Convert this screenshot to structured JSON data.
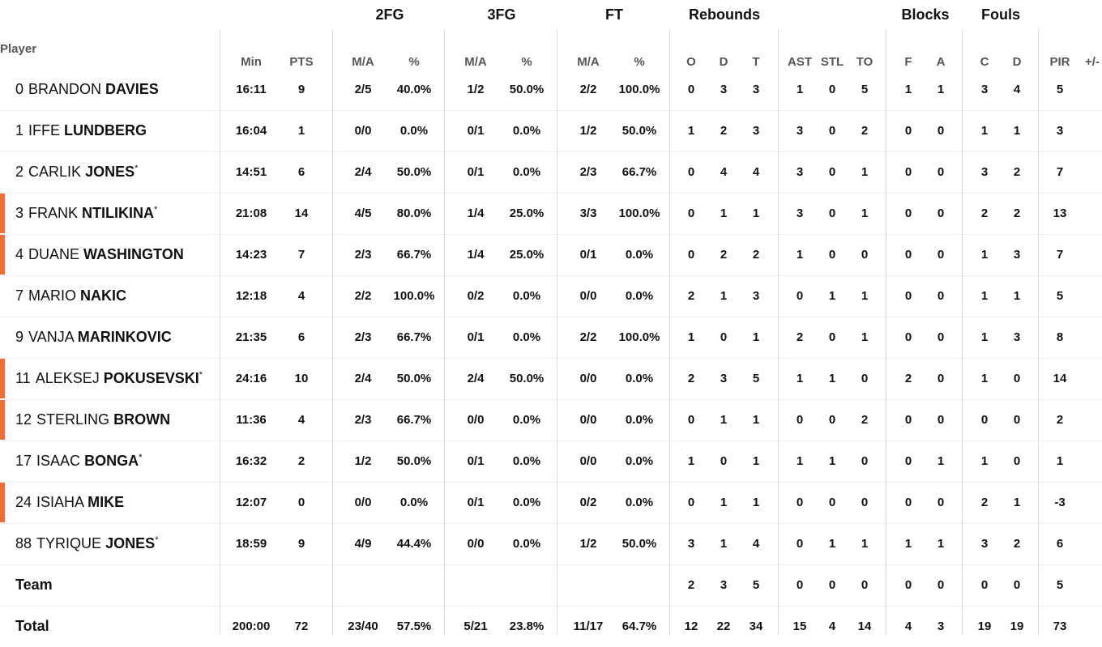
{
  "group_headers": [
    "2FG",
    "3FG",
    "FT",
    "Rebounds",
    "Blocks",
    "Fouls"
  ],
  "player_label": "Player",
  "columns": [
    "Min",
    "PTS",
    "M/A",
    "%",
    "M/A",
    "%",
    "M/A",
    "%",
    "O",
    "D",
    "T",
    "AST",
    "STL",
    "TO",
    "F",
    "A",
    "C",
    "D",
    "PIR",
    "+/-"
  ],
  "rows": [
    {
      "num": "0",
      "first": "BRANDON",
      "last": "DAVIES",
      "star": "",
      "mark": false,
      "stats": [
        "16:11",
        "9",
        "2/5",
        "40.0%",
        "1/2",
        "50.0%",
        "2/2",
        "100.0%",
        "0",
        "3",
        "3",
        "1",
        "0",
        "5",
        "1",
        "1",
        "3",
        "4",
        "5",
        ""
      ]
    },
    {
      "num": "1",
      "first": "IFFE",
      "last": "LUNDBERG",
      "star": "",
      "mark": false,
      "stats": [
        "16:04",
        "1",
        "0/0",
        "0.0%",
        "0/1",
        "0.0%",
        "1/2",
        "50.0%",
        "1",
        "2",
        "3",
        "3",
        "0",
        "2",
        "0",
        "0",
        "1",
        "1",
        "3",
        ""
      ]
    },
    {
      "num": "2",
      "first": "CARLIK",
      "last": "JONES",
      "star": "*",
      "mark": false,
      "stats": [
        "14:51",
        "6",
        "2/4",
        "50.0%",
        "0/1",
        "0.0%",
        "2/3",
        "66.7%",
        "0",
        "4",
        "4",
        "3",
        "0",
        "1",
        "0",
        "0",
        "3",
        "2",
        "7",
        ""
      ]
    },
    {
      "num": "3",
      "first": "FRANK",
      "last": "NTILIKINA",
      "star": "*",
      "mark": true,
      "stats": [
        "21:08",
        "14",
        "4/5",
        "80.0%",
        "1/4",
        "25.0%",
        "3/3",
        "100.0%",
        "0",
        "1",
        "1",
        "3",
        "0",
        "1",
        "0",
        "0",
        "2",
        "2",
        "13",
        ""
      ]
    },
    {
      "num": "4",
      "first": "DUANE",
      "last": "WASHINGTON",
      "star": "",
      "mark": true,
      "stats": [
        "14:23",
        "7",
        "2/3",
        "66.7%",
        "1/4",
        "25.0%",
        "0/1",
        "0.0%",
        "0",
        "2",
        "2",
        "1",
        "0",
        "0",
        "0",
        "0",
        "1",
        "3",
        "7",
        ""
      ]
    },
    {
      "num": "7",
      "first": "MARIO",
      "last": "NAKIC",
      "star": "",
      "mark": false,
      "stats": [
        "12:18",
        "4",
        "2/2",
        "100.0%",
        "0/2",
        "0.0%",
        "0/0",
        "0.0%",
        "2",
        "1",
        "3",
        "0",
        "1",
        "1",
        "0",
        "0",
        "1",
        "1",
        "5",
        ""
      ]
    },
    {
      "num": "9",
      "first": "VANJA",
      "last": "MARINKOVIC",
      "star": "",
      "mark": false,
      "stats": [
        "21:35",
        "6",
        "2/3",
        "66.7%",
        "0/1",
        "0.0%",
        "2/2",
        "100.0%",
        "1",
        "0",
        "1",
        "2",
        "0",
        "1",
        "0",
        "0",
        "1",
        "3",
        "8",
        ""
      ]
    },
    {
      "num": "11",
      "first": "ALEKSEJ",
      "last": "POKUSEVSKI",
      "star": "*",
      "mark": true,
      "stats": [
        "24:16",
        "10",
        "2/4",
        "50.0%",
        "2/4",
        "50.0%",
        "0/0",
        "0.0%",
        "2",
        "3",
        "5",
        "1",
        "1",
        "0",
        "2",
        "0",
        "1",
        "0",
        "14",
        ""
      ]
    },
    {
      "num": "12",
      "first": "STERLING",
      "last": "BROWN",
      "star": "",
      "mark": true,
      "stats": [
        "11:36",
        "4",
        "2/3",
        "66.7%",
        "0/0",
        "0.0%",
        "0/0",
        "0.0%",
        "0",
        "1",
        "1",
        "0",
        "0",
        "2",
        "0",
        "0",
        "0",
        "0",
        "2",
        ""
      ]
    },
    {
      "num": "17",
      "first": "ISAAC",
      "last": "BONGA",
      "star": "*",
      "mark": false,
      "stats": [
        "16:32",
        "2",
        "1/2",
        "50.0%",
        "0/1",
        "0.0%",
        "0/0",
        "0.0%",
        "1",
        "0",
        "1",
        "1",
        "1",
        "0",
        "0",
        "1",
        "1",
        "0",
        "1",
        ""
      ]
    },
    {
      "num": "24",
      "first": "ISIAHA",
      "last": "MIKE",
      "star": "",
      "mark": true,
      "stats": [
        "12:07",
        "0",
        "0/0",
        "0.0%",
        "0/1",
        "0.0%",
        "0/2",
        "0.0%",
        "0",
        "1",
        "1",
        "0",
        "0",
        "0",
        "0",
        "0",
        "2",
        "1",
        "-3",
        ""
      ]
    },
    {
      "num": "88",
      "first": "TYRIQUE",
      "last": "JONES",
      "star": "*",
      "mark": false,
      "stats": [
        "18:59",
        "9",
        "4/9",
        "44.4%",
        "0/0",
        "0.0%",
        "1/2",
        "50.0%",
        "3",
        "1",
        "4",
        "0",
        "1",
        "1",
        "1",
        "1",
        "3",
        "2",
        "6",
        ""
      ]
    }
  ],
  "team_row": {
    "label": "Team",
    "stats": [
      "",
      "",
      "",
      "",
      "",
      "",
      "",
      "",
      "2",
      "3",
      "5",
      "0",
      "0",
      "0",
      "0",
      "0",
      "0",
      "0",
      "5",
      ""
    ]
  },
  "total_row": {
    "label": "Total",
    "stats": [
      "200:00",
      "72",
      "23/40",
      "57.5%",
      "5/21",
      "23.8%",
      "11/17",
      "64.7%",
      "12",
      "22",
      "34",
      "15",
      "4",
      "14",
      "4",
      "3",
      "19",
      "19",
      "73",
      ""
    ]
  },
  "colors": {
    "starter_mark": "#f26b3a",
    "divider": "#d8d8d8",
    "row_border": "#eeeeee"
  }
}
